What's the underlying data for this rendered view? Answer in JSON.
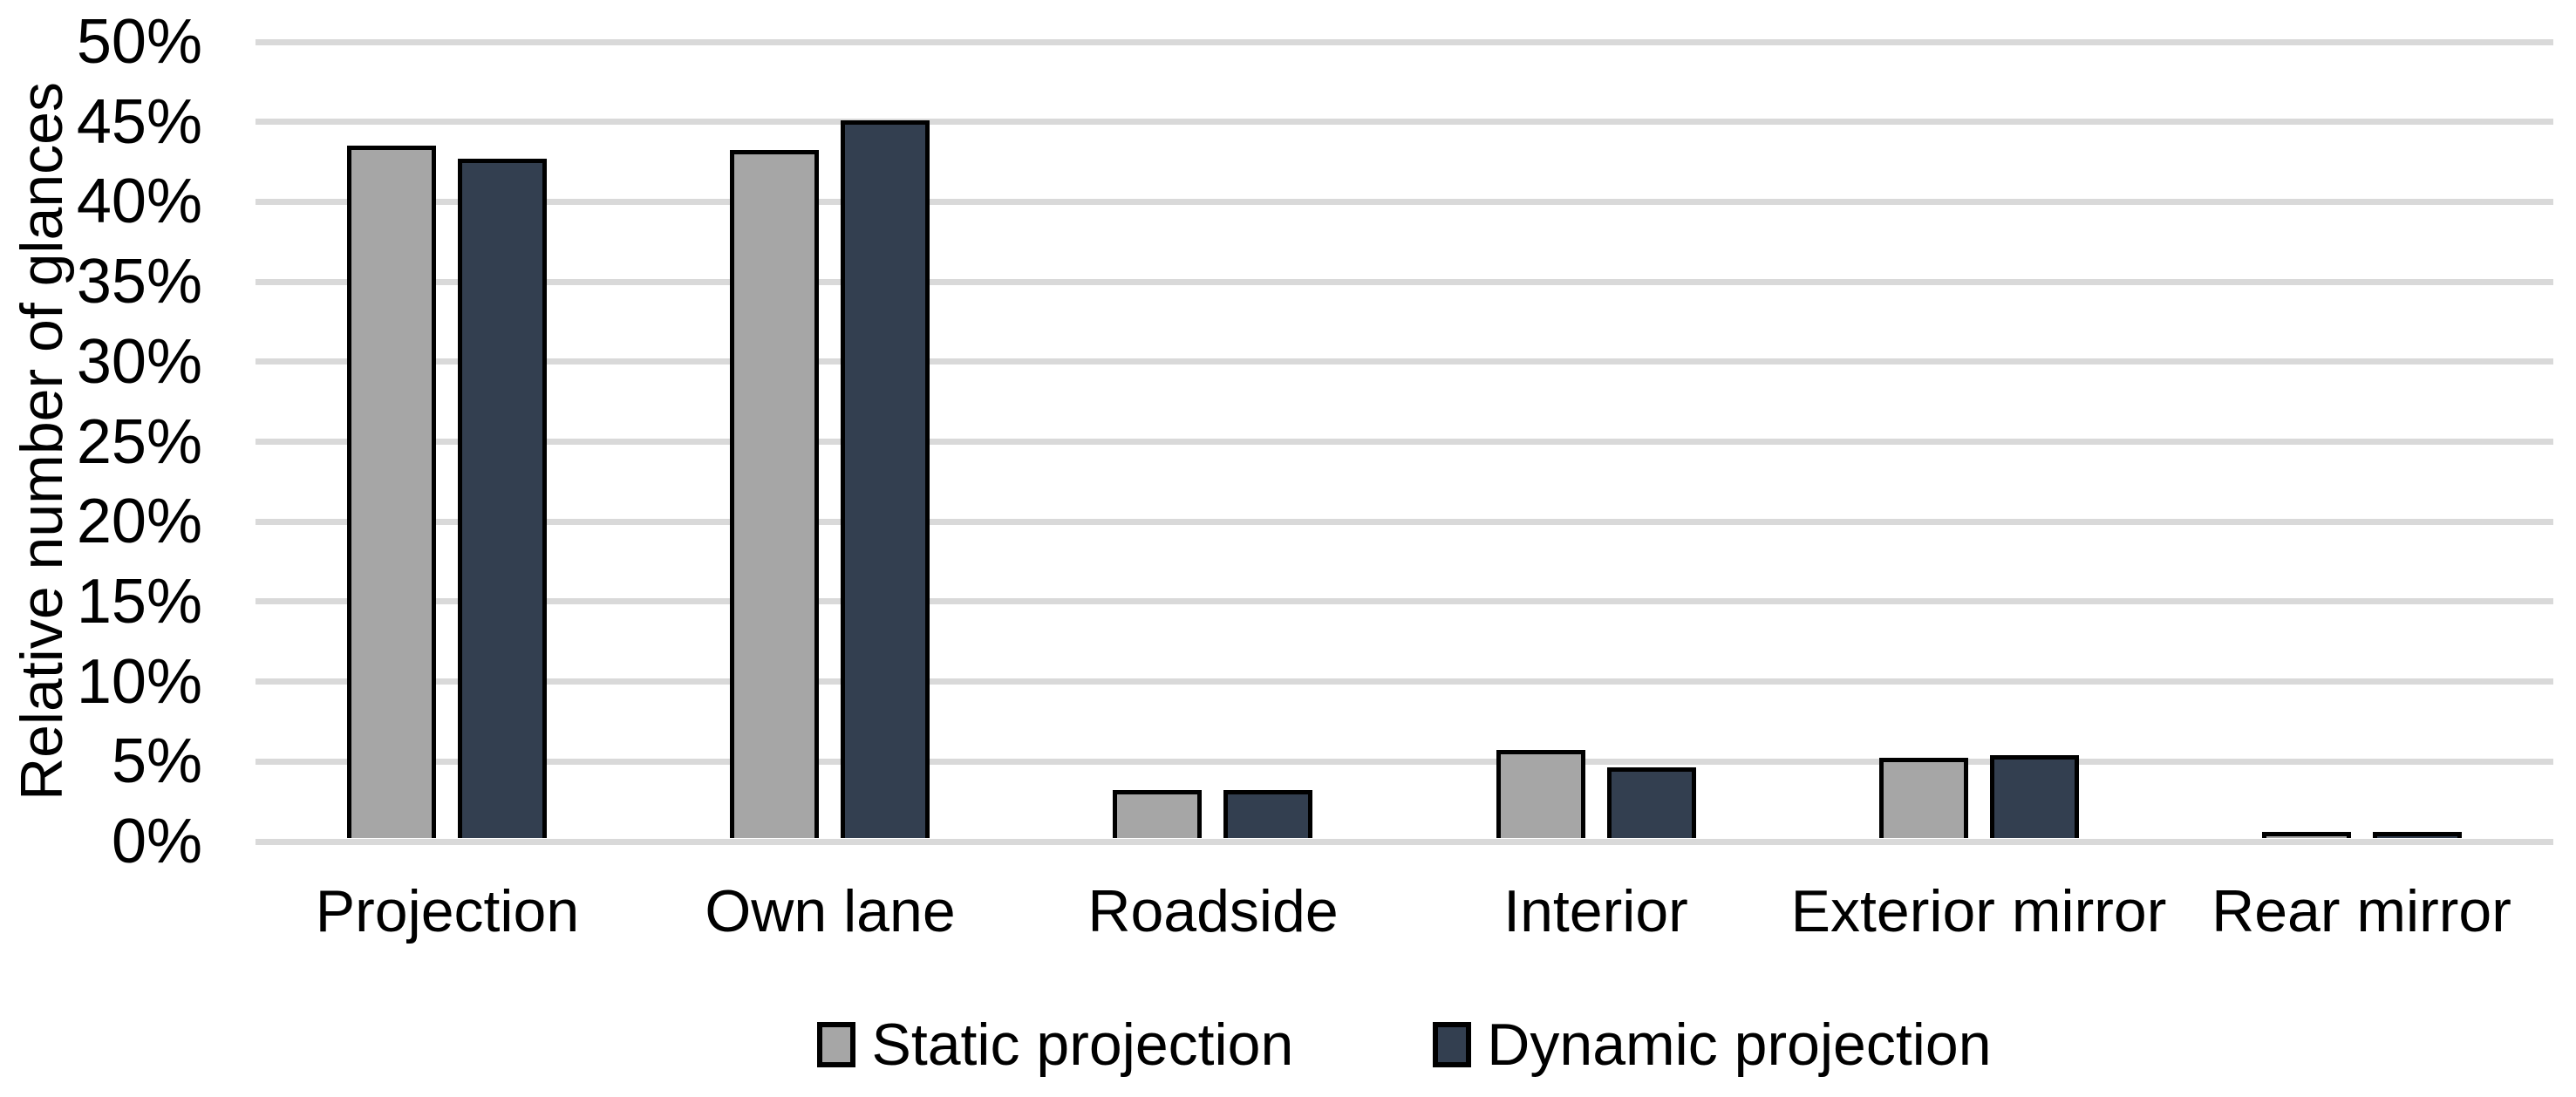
{
  "chart_data": {
    "type": "bar",
    "title": "",
    "xlabel": "",
    "ylabel": "Relative number of glances",
    "categories": [
      "Projection",
      "Own lane",
      "Roadside",
      "Interior",
      "Exterior mirror",
      "Rear mirror"
    ],
    "series": [
      {
        "name": "Static projection",
        "color": "#A6A6A6",
        "values": [
          43.3,
          43.0,
          3.0,
          5.5,
          5.0,
          0.4
        ]
      },
      {
        "name": "Dynamic projection",
        "color": "#333F50",
        "values": [
          42.5,
          44.9,
          3.0,
          4.4,
          5.2,
          0.4
        ]
      }
    ],
    "ylim": [
      0,
      50
    ],
    "ytick_step": 5,
    "ytick_labels": [
      "0%",
      "5%",
      "10%",
      "15%",
      "20%",
      "25%",
      "30%",
      "35%",
      "40%",
      "45%",
      "50%"
    ],
    "grid": true,
    "gridline_color": "#D9D9D9",
    "bar_outline_color": "#000000",
    "legend_position": "bottom"
  },
  "legend": {
    "items": [
      {
        "label": "Static projection",
        "color": "#A6A6A6"
      },
      {
        "label": "Dynamic projection",
        "color": "#333F50"
      }
    ]
  }
}
